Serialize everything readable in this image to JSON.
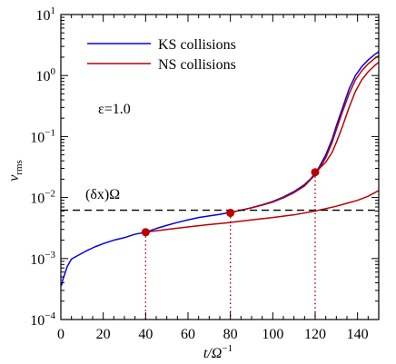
{
  "chart_data": {
    "type": "line",
    "title": "",
    "xlabel": "t/Ω",
    "xlabel_sup": "−1",
    "ylabel": "v",
    "ylabel_sub": "rms",
    "xlim": [
      0,
      150
    ],
    "ylim": [
      0.0001,
      10
    ],
    "yscale": "log",
    "grid": false,
    "legend_position": "top-left",
    "x_ticks": [
      0,
      20,
      40,
      60,
      80,
      100,
      120,
      140
    ],
    "y_ticks": [
      {
        "value": 0.0001,
        "base": "10",
        "exp": "−4"
      },
      {
        "value": 0.001,
        "base": "10",
        "exp": "−3"
      },
      {
        "value": 0.01,
        "base": "10",
        "exp": "−2"
      },
      {
        "value": 0.1,
        "base": "10",
        "exp": "−1"
      },
      {
        "value": 1,
        "base": "10",
        "exp": "0"
      },
      {
        "value": 10,
        "base": "10",
        "exp": "1"
      }
    ],
    "annotations": {
      "epsilon": "ε=1.0",
      "threshold_label": "(δx)Ω",
      "threshold_value": 0.0062
    },
    "series": [
      {
        "name": "KS collisions",
        "color": "#0000ee",
        "points": [
          [
            0.3,
            0.00036
          ],
          [
            1,
            0.00046
          ],
          [
            2,
            0.00058
          ],
          [
            3,
            0.00074
          ],
          [
            5,
            0.00098
          ],
          [
            8,
            0.00112
          ],
          [
            12,
            0.00133
          ],
          [
            16,
            0.00155
          ],
          [
            20,
            0.00175
          ],
          [
            25,
            0.002
          ],
          [
            30,
            0.0022
          ],
          [
            35,
            0.0025
          ],
          [
            40,
            0.0027
          ],
          [
            45,
            0.0031
          ],
          [
            50,
            0.0035
          ],
          [
            55,
            0.0039
          ],
          [
            60,
            0.0043
          ],
          [
            65,
            0.0047
          ],
          [
            70,
            0.005
          ],
          [
            75,
            0.0053
          ],
          [
            80,
            0.0057
          ],
          [
            85,
            0.0062
          ],
          [
            90,
            0.0068
          ],
          [
            95,
            0.0076
          ],
          [
            100,
            0.0086
          ],
          [
            105,
            0.0102
          ],
          [
            110,
            0.0125
          ],
          [
            115,
            0.0163
          ],
          [
            118,
            0.0205
          ],
          [
            120,
            0.025
          ],
          [
            122,
            0.032
          ],
          [
            125,
            0.05
          ],
          [
            128,
            0.09
          ],
          [
            130,
            0.15
          ],
          [
            133,
            0.3
          ],
          [
            136,
            0.6
          ],
          [
            139,
            1.0
          ],
          [
            142,
            1.4
          ],
          [
            145,
            1.8
          ],
          [
            148,
            2.2
          ],
          [
            150,
            2.45
          ]
        ]
      },
      {
        "name": "NS collisions",
        "color": "#bb0000",
        "points": [
          [
            40,
            0.0027
          ],
          [
            50,
            0.003
          ],
          [
            60,
            0.0033
          ],
          [
            70,
            0.0036
          ],
          [
            80,
            0.0039
          ],
          [
            90,
            0.0043
          ],
          [
            100,
            0.0047
          ],
          [
            110,
            0.0052
          ],
          [
            120,
            0.006
          ],
          [
            130,
            0.0072
          ],
          [
            140,
            0.009
          ],
          [
            145,
            0.0105
          ],
          [
            150,
            0.013
          ]
        ]
      },
      {
        "name": "",
        "color": "#bb0000",
        "points": [
          [
            80,
            0.0057
          ],
          [
            85,
            0.0062
          ],
          [
            90,
            0.0068
          ],
          [
            95,
            0.0075
          ],
          [
            100,
            0.0084
          ],
          [
            105,
            0.0099
          ],
          [
            110,
            0.012
          ],
          [
            115,
            0.0155
          ],
          [
            120,
            0.0235
          ],
          [
            122,
            0.03
          ],
          [
            125,
            0.045
          ],
          [
            128,
            0.08
          ],
          [
            130,
            0.13
          ],
          [
            133,
            0.26
          ],
          [
            136,
            0.5
          ],
          [
            139,
            0.85
          ],
          [
            142,
            1.2
          ],
          [
            145,
            1.55
          ],
          [
            148,
            1.9
          ],
          [
            150,
            2.1
          ]
        ]
      },
      {
        "name": "",
        "color": "#bb0000",
        "points": [
          [
            120,
            0.026
          ],
          [
            122,
            0.03
          ],
          [
            125,
            0.038
          ],
          [
            128,
            0.055
          ],
          [
            130,
            0.08
          ],
          [
            133,
            0.15
          ],
          [
            136,
            0.3
          ],
          [
            139,
            0.55
          ],
          [
            142,
            0.85
          ],
          [
            145,
            1.15
          ],
          [
            148,
            1.45
          ],
          [
            150,
            1.65
          ]
        ]
      }
    ],
    "markers": [
      {
        "x": 40,
        "y": 0.0027,
        "color": "#bb0000"
      },
      {
        "x": 80,
        "y": 0.0056,
        "color": "#bb0000"
      },
      {
        "x": 120,
        "y": 0.026,
        "color": "#bb0000"
      }
    ]
  }
}
